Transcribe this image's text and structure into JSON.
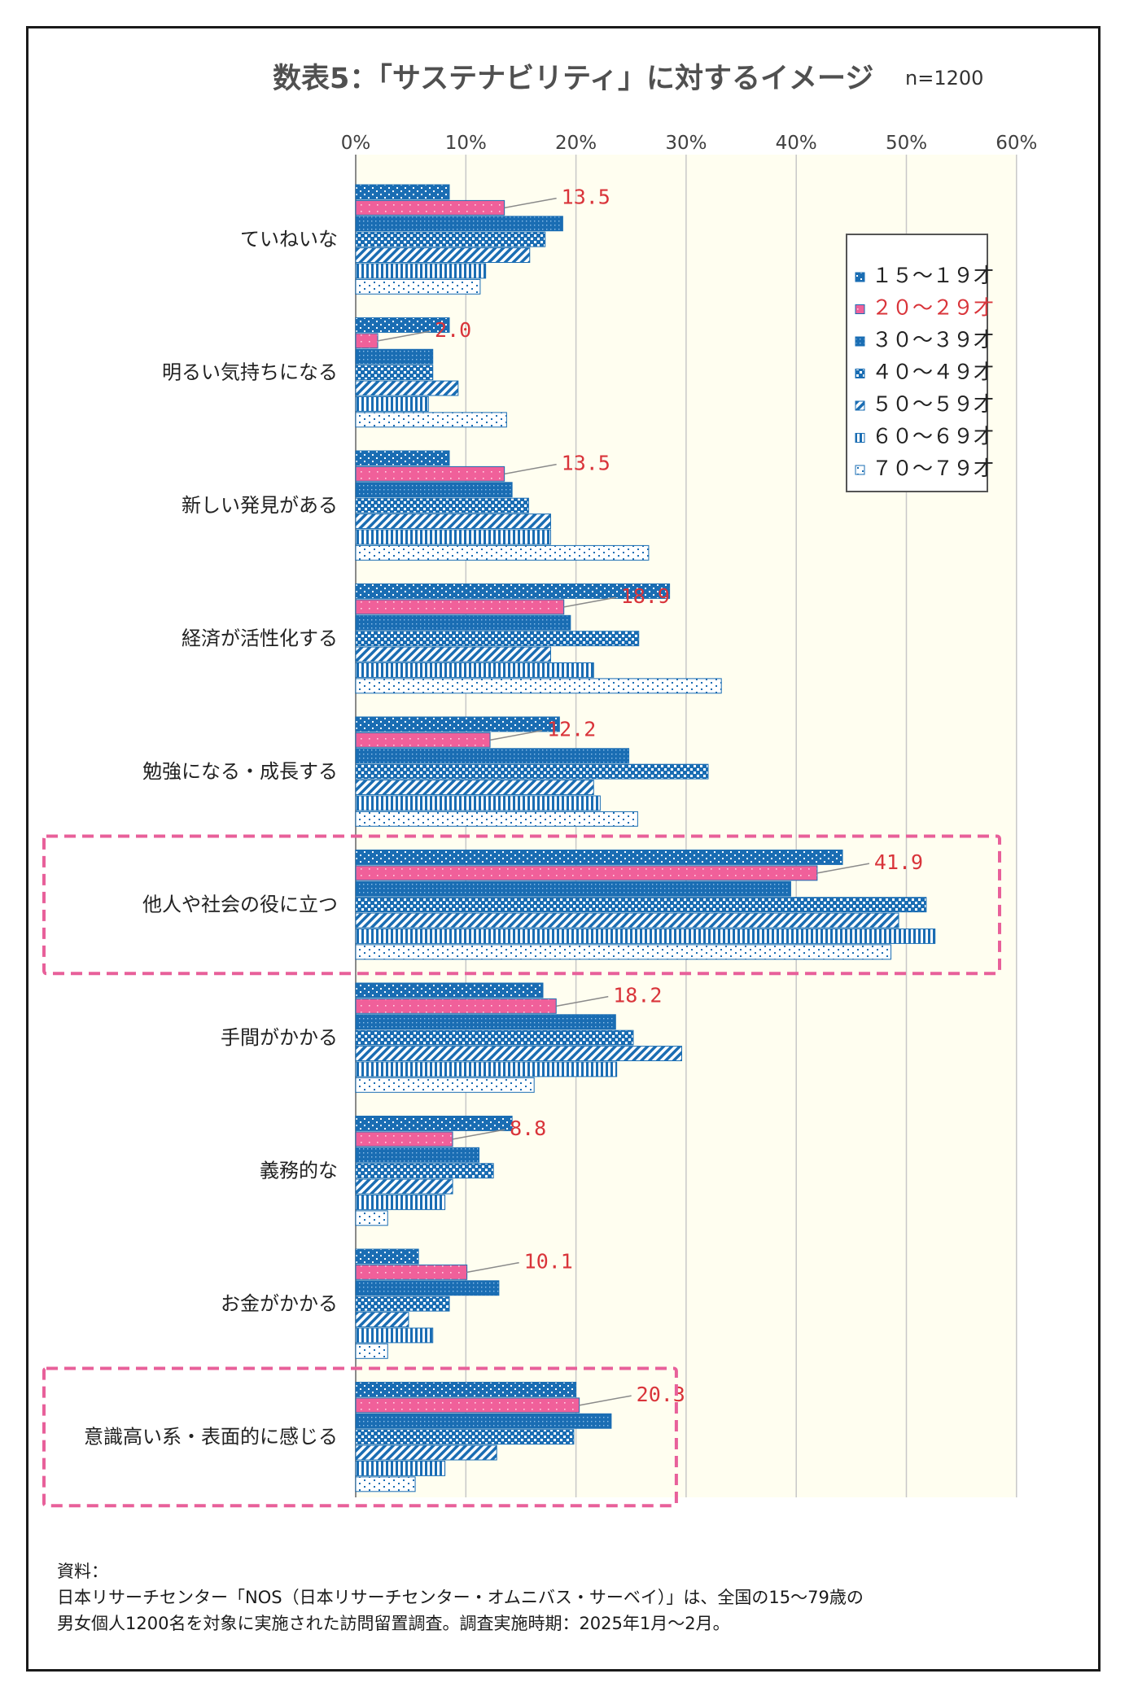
{
  "chart_data": {
    "type": "bar",
    "orientation": "horizontal",
    "title": "数表5：「サステナビリティ」に対するイメージ",
    "sample_size": "n=1200",
    "x_ticks": [
      "0%",
      "10%",
      "20%",
      "30%",
      "40%",
      "50%",
      "60%"
    ],
    "xlim": [
      0,
      60
    ],
    "categories": [
      "ていねいな",
      "明るい気持ちになる",
      "新しい発見がある",
      "経済が活性化する",
      "勉強になる・成長する",
      "他人や社会の役に立つ",
      "手間がかかる",
      "義務的な",
      "お金がかかる",
      "意識高い系・表面的に感じる"
    ],
    "highlighted_categories": [
      "他人や社会の役に立つ",
      "意識高い系・表面的に感じる"
    ],
    "series": [
      {
        "name": "１５～１９才",
        "pattern": "dots",
        "values": [
          8.5,
          8.5,
          8.5,
          28.5,
          18.5,
          44.2,
          17.0,
          14.2,
          5.7,
          20.0
        ]
      },
      {
        "name": "２０～２９才",
        "pattern": "solid-pink-dots",
        "values": [
          13.5,
          2.0,
          13.5,
          18.9,
          12.2,
          41.9,
          18.2,
          8.8,
          10.1,
          20.3
        ]
      },
      {
        "name": "３０～３９才",
        "pattern": "dense-dots",
        "values": [
          18.8,
          7.0,
          14.2,
          19.5,
          24.8,
          39.5,
          23.6,
          11.2,
          13.0,
          23.2
        ]
      },
      {
        "name": "４０～４９才",
        "pattern": "checker",
        "values": [
          17.2,
          7.0,
          15.7,
          25.7,
          32.0,
          51.8,
          25.2,
          12.5,
          8.5,
          19.8
        ]
      },
      {
        "name": "５０～５９才",
        "pattern": "diagonal",
        "values": [
          15.8,
          9.3,
          17.7,
          17.7,
          21.6,
          49.3,
          29.6,
          8.8,
          4.8,
          12.8
        ]
      },
      {
        "name": "６０～６９才",
        "pattern": "vertical",
        "values": [
          11.8,
          6.6,
          17.7,
          21.6,
          22.2,
          52.6,
          23.7,
          8.1,
          7.0,
          8.1
        ]
      },
      {
        "name": "７０～７９才",
        "pattern": "sparse-dots",
        "values": [
          11.3,
          13.7,
          26.6,
          33.2,
          25.6,
          48.6,
          16.2,
          2.9,
          2.9,
          5.4
        ]
      }
    ],
    "data_labels": [
      "13.5",
      "2.0",
      "13.5",
      "18.9",
      "12.2",
      "41.9",
      "18.2",
      "8.8",
      "10.1",
      "20.3"
    ],
    "legend_position": "top-right"
  },
  "source": {
    "heading": "資料：",
    "line1": "日本リサーチセンター「NOS（日本リサーチセンター・オムニバス・サーベイ）」は、全国の15～79歳の",
    "line2": "男女個人1200名を対象に実施された訪問留置調査。調査実施時期：2025年1月～2月。"
  },
  "colors": {
    "blue": "#1a6db3",
    "pink": "#f0609a",
    "red_label": "#d9343a",
    "plot_bg": "#fffef0",
    "grid": "#c8c8c8",
    "highlight": "#e8609a"
  }
}
